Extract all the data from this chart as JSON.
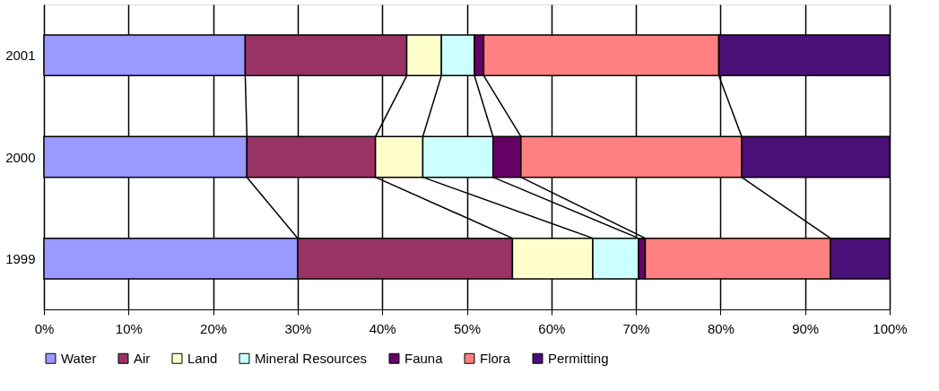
{
  "chart_data": {
    "type": "bar",
    "orientation": "horizontal",
    "stacked": true,
    "categories": [
      "2001",
      "2000",
      "1999"
    ],
    "series": [
      {
        "name": "Water",
        "color": "#9999ff",
        "values": [
          23.8,
          24.0,
          30.0
        ]
      },
      {
        "name": "Air",
        "color": "#993366",
        "values": [
          19.1,
          15.2,
          25.4
        ]
      },
      {
        "name": "Land",
        "color": "#ffffcc",
        "values": [
          4.1,
          5.6,
          9.5
        ]
      },
      {
        "name": "Mineral Resources",
        "color": "#ccffff",
        "values": [
          3.9,
          8.3,
          5.4
        ]
      },
      {
        "name": "Fauna",
        "color": "#660066",
        "values": [
          1.1,
          3.3,
          0.8
        ]
      },
      {
        "name": "Flora",
        "color": "#ff8080",
        "values": [
          27.8,
          26.1,
          21.9
        ]
      },
      {
        "name": "Permitting",
        "color": "#4a1078",
        "values": [
          20.2,
          17.5,
          7.0
        ]
      }
    ],
    "xlim": [
      0,
      100
    ],
    "xticks": [
      {
        "value": 0,
        "label": "0%"
      },
      {
        "value": 10,
        "label": "10%"
      },
      {
        "value": 20,
        "label": "20%"
      },
      {
        "value": 30,
        "label": "30%"
      },
      {
        "value": 40,
        "label": "40%"
      },
      {
        "value": 50,
        "label": "50%"
      },
      {
        "value": 60,
        "label": "60%"
      },
      {
        "value": 70,
        "label": "70%"
      },
      {
        "value": 80,
        "label": "80%"
      },
      {
        "value": 90,
        "label": "90%"
      },
      {
        "value": 100,
        "label": "100%"
      }
    ],
    "grid": "x",
    "legend": "bottom"
  }
}
